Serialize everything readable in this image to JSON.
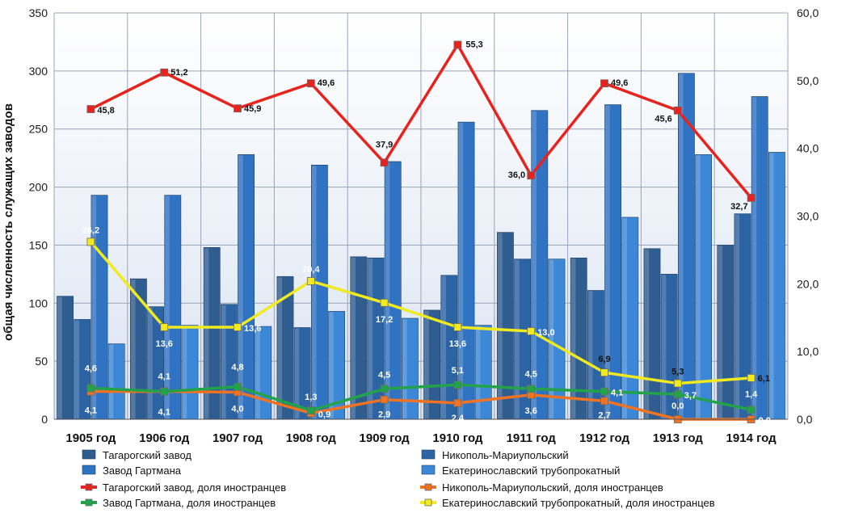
{
  "chart_data": {
    "type": "bar+line",
    "title": "",
    "ylabel_left": "общая численность служащих заводов",
    "ylabel_right": "",
    "ylim_left": [
      0,
      350
    ],
    "yticks_left": [
      "0",
      "50",
      "100",
      "150",
      "200",
      "250",
      "300",
      "350"
    ],
    "ylim_right": [
      0,
      60
    ],
    "yticks_right": [
      "0,0",
      "10,0",
      "20,0",
      "30,0",
      "40,0",
      "50,0",
      "60,0"
    ],
    "grid": true,
    "legend_position": "bottom",
    "categories": [
      "1905 год",
      "1906 год",
      "1907 год",
      "1908 год",
      "1909 год",
      "1910 год",
      "1911 год",
      "1912 год",
      "1913 год",
      "1914 год"
    ],
    "bar_series": [
      {
        "name": "Тагарогский завод",
        "color": "#2f5d8f",
        "values": [
          106,
          121,
          148,
          123,
          140,
          94,
          161,
          139,
          147,
          150
        ]
      },
      {
        "name": "Никополь-Мариупольский",
        "color": "#2c63a3",
        "values": [
          86,
          97,
          99,
          79,
          139,
          124,
          138,
          111,
          125,
          177
        ]
      },
      {
        "name": "Завод Гартмана",
        "color": "#2f73c2",
        "values": [
          193,
          193,
          228,
          219,
          222,
          256,
          266,
          271,
          298,
          278
        ]
      },
      {
        "name": "Екатеринославский трубопрокатный",
        "color": "#3c88d6",
        "values": [
          65,
          81,
          80,
          93,
          87,
          81,
          138,
          174,
          228,
          230
        ]
      }
    ],
    "line_series": [
      {
        "name": "Тагарогский завод, доля иностранцев",
        "color": "#e8231d",
        "values": [
          45.8,
          51.2,
          45.9,
          49.6,
          37.9,
          55.3,
          36.0,
          49.6,
          45.6,
          32.7
        ],
        "labels": [
          "45,8",
          "51,2",
          "45,9",
          "49,6",
          "37,9",
          "55,3",
          "36,0",
          "49,6",
          "45,6",
          "32,7"
        ]
      },
      {
        "name": "Никополь-Мариупольский, доля иностранцев",
        "color": "#ef7322",
        "values": [
          4.1,
          4.1,
          4.0,
          0.9,
          2.9,
          2.4,
          3.6,
          2.7,
          0.0,
          0.0
        ],
        "labels": [
          "4,1",
          "4,1",
          "4,0",
          "0,9",
          "2,9",
          "2,4",
          "3,6",
          "2,7",
          "0,0",
          "0,0"
        ]
      },
      {
        "name": "Завод Гартмана, доля иностранцев",
        "color": "#22a34a",
        "values": [
          4.6,
          4.1,
          4.8,
          1.3,
          4.5,
          5.1,
          4.5,
          4.1,
          3.7,
          1.4
        ],
        "labels": [
          "4,6",
          "4,1",
          "4,8",
          "1,3",
          "4,5",
          "5,1",
          "4,5",
          "4,1",
          "3,7",
          "1,4"
        ]
      },
      {
        "name": "Екатеринославский трубопрокатный, доля иностранцев",
        "color": "#f0ea1e",
        "values": [
          26.2,
          13.6,
          13.6,
          20.4,
          17.2,
          13.6,
          13.0,
          6.9,
          5.3,
          6.1
        ],
        "labels": [
          "26,2",
          "13,6",
          "13,6",
          "20,4",
          "17,2",
          "13,6",
          "13,0",
          "6,9",
          "5,3",
          "6,1"
        ]
      }
    ]
  },
  "legend": {
    "items": [
      "Тагарогский завод",
      "Никополь-Мариупольский",
      "Завод Гартмана",
      "Екатеринославский трубопрокатный",
      "Тагарогский завод, доля иностранцев",
      "Никополь-Мариупольский, доля иностранцев",
      "Завод Гартмана, доля иностранцев",
      "Екатеринославский трубопрокатный, доля иностранцев"
    ]
  }
}
